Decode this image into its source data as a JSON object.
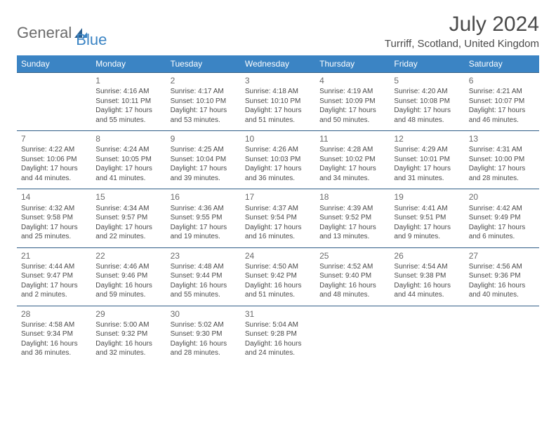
{
  "logo": {
    "part1": "General",
    "part2": "Blue"
  },
  "title": "July 2024",
  "location": "Turriff, Scotland, United Kingdom",
  "colors": {
    "header_bg": "#3b84c4",
    "header_text": "#ffffff",
    "border": "#2f5d86",
    "body_text": "#4a4a4a",
    "logo_gray": "#6b6b6b",
    "logo_blue": "#3b84c4",
    "page_bg": "#ffffff"
  },
  "typography": {
    "title_pt": 30,
    "location_pt": 15,
    "dayheader_pt": 12,
    "daynum_pt": 12,
    "cell_pt": 10
  },
  "day_headers": [
    "Sunday",
    "Monday",
    "Tuesday",
    "Wednesday",
    "Thursday",
    "Friday",
    "Saturday"
  ],
  "weeks": [
    [
      null,
      {
        "n": "1",
        "sr": "4:16 AM",
        "ss": "10:11 PM",
        "dl": "17 hours and 55 minutes."
      },
      {
        "n": "2",
        "sr": "4:17 AM",
        "ss": "10:10 PM",
        "dl": "17 hours and 53 minutes."
      },
      {
        "n": "3",
        "sr": "4:18 AM",
        "ss": "10:10 PM",
        "dl": "17 hours and 51 minutes."
      },
      {
        "n": "4",
        "sr": "4:19 AM",
        "ss": "10:09 PM",
        "dl": "17 hours and 50 minutes."
      },
      {
        "n": "5",
        "sr": "4:20 AM",
        "ss": "10:08 PM",
        "dl": "17 hours and 48 minutes."
      },
      {
        "n": "6",
        "sr": "4:21 AM",
        "ss": "10:07 PM",
        "dl": "17 hours and 46 minutes."
      }
    ],
    [
      {
        "n": "7",
        "sr": "4:22 AM",
        "ss": "10:06 PM",
        "dl": "17 hours and 44 minutes."
      },
      {
        "n": "8",
        "sr": "4:24 AM",
        "ss": "10:05 PM",
        "dl": "17 hours and 41 minutes."
      },
      {
        "n": "9",
        "sr": "4:25 AM",
        "ss": "10:04 PM",
        "dl": "17 hours and 39 minutes."
      },
      {
        "n": "10",
        "sr": "4:26 AM",
        "ss": "10:03 PM",
        "dl": "17 hours and 36 minutes."
      },
      {
        "n": "11",
        "sr": "4:28 AM",
        "ss": "10:02 PM",
        "dl": "17 hours and 34 minutes."
      },
      {
        "n": "12",
        "sr": "4:29 AM",
        "ss": "10:01 PM",
        "dl": "17 hours and 31 minutes."
      },
      {
        "n": "13",
        "sr": "4:31 AM",
        "ss": "10:00 PM",
        "dl": "17 hours and 28 minutes."
      }
    ],
    [
      {
        "n": "14",
        "sr": "4:32 AM",
        "ss": "9:58 PM",
        "dl": "17 hours and 25 minutes."
      },
      {
        "n": "15",
        "sr": "4:34 AM",
        "ss": "9:57 PM",
        "dl": "17 hours and 22 minutes."
      },
      {
        "n": "16",
        "sr": "4:36 AM",
        "ss": "9:55 PM",
        "dl": "17 hours and 19 minutes."
      },
      {
        "n": "17",
        "sr": "4:37 AM",
        "ss": "9:54 PM",
        "dl": "17 hours and 16 minutes."
      },
      {
        "n": "18",
        "sr": "4:39 AM",
        "ss": "9:52 PM",
        "dl": "17 hours and 13 minutes."
      },
      {
        "n": "19",
        "sr": "4:41 AM",
        "ss": "9:51 PM",
        "dl": "17 hours and 9 minutes."
      },
      {
        "n": "20",
        "sr": "4:42 AM",
        "ss": "9:49 PM",
        "dl": "17 hours and 6 minutes."
      }
    ],
    [
      {
        "n": "21",
        "sr": "4:44 AM",
        "ss": "9:47 PM",
        "dl": "17 hours and 2 minutes."
      },
      {
        "n": "22",
        "sr": "4:46 AM",
        "ss": "9:46 PM",
        "dl": "16 hours and 59 minutes."
      },
      {
        "n": "23",
        "sr": "4:48 AM",
        "ss": "9:44 PM",
        "dl": "16 hours and 55 minutes."
      },
      {
        "n": "24",
        "sr": "4:50 AM",
        "ss": "9:42 PM",
        "dl": "16 hours and 51 minutes."
      },
      {
        "n": "25",
        "sr": "4:52 AM",
        "ss": "9:40 PM",
        "dl": "16 hours and 48 minutes."
      },
      {
        "n": "26",
        "sr": "4:54 AM",
        "ss": "9:38 PM",
        "dl": "16 hours and 44 minutes."
      },
      {
        "n": "27",
        "sr": "4:56 AM",
        "ss": "9:36 PM",
        "dl": "16 hours and 40 minutes."
      }
    ],
    [
      {
        "n": "28",
        "sr": "4:58 AM",
        "ss": "9:34 PM",
        "dl": "16 hours and 36 minutes."
      },
      {
        "n": "29",
        "sr": "5:00 AM",
        "ss": "9:32 PM",
        "dl": "16 hours and 32 minutes."
      },
      {
        "n": "30",
        "sr": "5:02 AM",
        "ss": "9:30 PM",
        "dl": "16 hours and 28 minutes."
      },
      {
        "n": "31",
        "sr": "5:04 AM",
        "ss": "9:28 PM",
        "dl": "16 hours and 24 minutes."
      },
      null,
      null,
      null
    ]
  ],
  "labels": {
    "sunrise": "Sunrise:",
    "sunset": "Sunset:",
    "daylight": "Daylight:"
  }
}
